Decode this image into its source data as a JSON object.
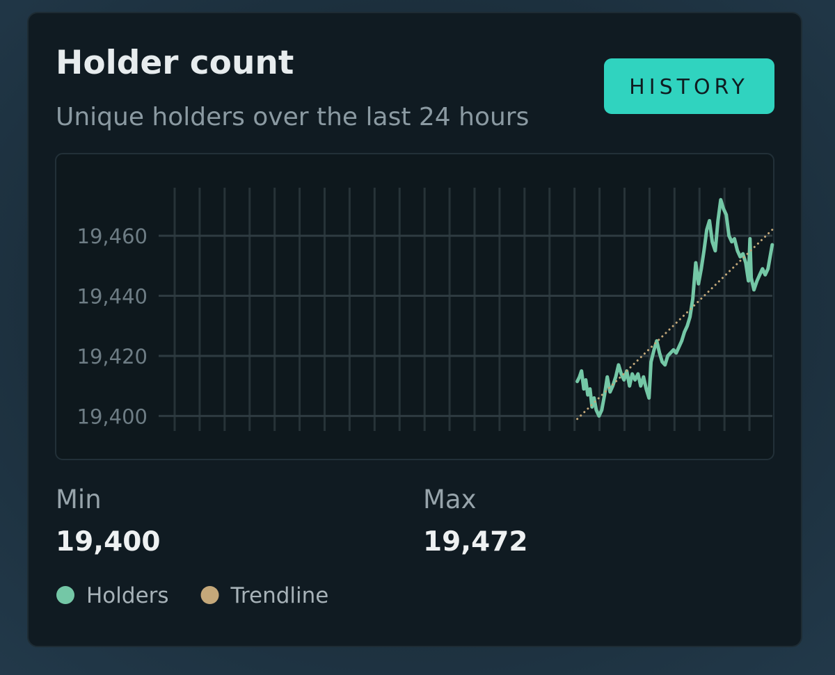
{
  "header": {
    "title": "Holder count",
    "subtitle": "Unique holders over the last 24 hours",
    "button": "HISTORY"
  },
  "chart_data": {
    "type": "line",
    "xlim": [
      0,
      24
    ],
    "xticks": [
      0,
      1,
      2,
      3,
      4,
      5,
      6,
      7,
      8,
      9,
      10,
      11,
      12,
      13,
      14,
      15,
      16,
      17,
      18,
      19,
      20,
      21,
      22,
      23
    ],
    "ylim": [
      19395,
      19476
    ],
    "yticks": [
      {
        "value": 19400,
        "label": "19,400"
      },
      {
        "value": 19420,
        "label": "19,420"
      },
      {
        "value": 19440,
        "label": "19,440"
      },
      {
        "value": 19460,
        "label": "19,460"
      }
    ],
    "grid": true,
    "series": [
      {
        "name": "Holders",
        "color": "#74c7a6",
        "x": [
          16.11,
          16.2,
          16.28,
          16.37,
          16.45,
          16.53,
          16.62,
          16.7,
          16.78,
          16.87,
          16.98,
          17.09,
          17.2,
          17.31,
          17.42,
          17.53,
          17.65,
          17.76,
          17.87,
          17.98,
          18.09,
          18.2,
          18.31,
          18.42,
          18.54,
          18.65,
          18.76,
          18.87,
          18.98,
          19.06,
          19.18,
          19.29,
          19.4,
          19.51,
          19.62,
          19.73,
          19.84,
          19.96,
          20.07,
          20.18,
          20.29,
          20.4,
          20.51,
          20.62,
          20.73,
          20.85,
          20.96,
          21.07,
          21.18,
          21.29,
          21.4,
          21.51,
          21.63,
          21.74,
          21.85,
          21.96,
          22.07,
          22.18,
          22.29,
          22.4,
          22.52,
          22.63,
          22.74,
          22.85,
          22.96,
          23.02,
          23.07,
          23.18,
          23.3,
          23.41,
          23.52,
          23.63,
          23.74,
          23.91
        ],
        "values": [
          19411.5,
          19413,
          19415,
          19409,
          19412,
          19407,
          19409,
          19403,
          19406,
          19402,
          19400,
          19402,
          19407,
          19413,
          19408,
          19410,
          19413,
          19417,
          19414,
          19412,
          19415,
          19410,
          19414,
          19412,
          19414,
          19410,
          19413,
          19409,
          19406,
          19418,
          19422,
          19425,
          19421,
          19418,
          19417,
          19420,
          19421,
          19422,
          19421,
          19423,
          19425,
          19428,
          19430,
          19433,
          19439,
          19451,
          19444,
          19449,
          19455,
          19462,
          19465,
          19458,
          19455,
          19465,
          19472,
          19469,
          19467,
          19460,
          19458,
          19459,
          19455,
          19453,
          19454,
          19451,
          19445,
          19459,
          19446,
          19442,
          19445,
          19447,
          19449,
          19447,
          19449,
          19457
        ]
      },
      {
        "name": "Trendline",
        "color": "#c4a87a",
        "dash": "dotted",
        "x": [
          16.11,
          23.91
        ],
        "values": [
          19399,
          19462
        ]
      }
    ]
  },
  "stats": [
    {
      "label": "Min",
      "value": "19,400"
    },
    {
      "label": "Max",
      "value": "19,472"
    }
  ]
}
